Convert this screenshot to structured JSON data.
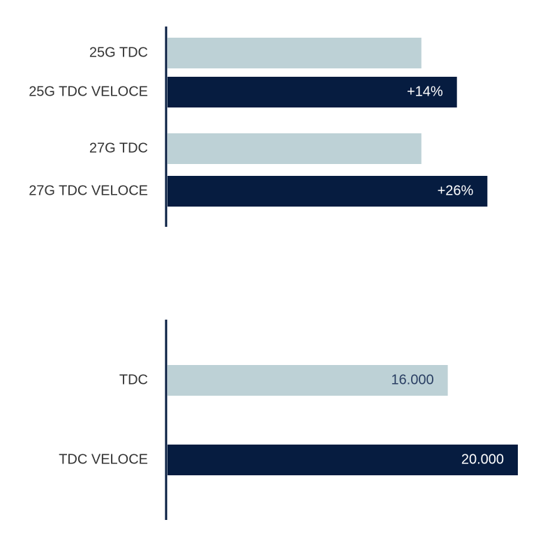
{
  "chart_data": [
    {
      "type": "barh",
      "categories": [
        "25G TDC",
        "25G TDC VELOCE",
        "27G TDC",
        "27G TDC VELOCE"
      ],
      "values": [
        100,
        114,
        100,
        126
      ],
      "value_labels": [
        null,
        "+14%",
        null,
        "+26%"
      ],
      "colors": [
        "#bdd1d6",
        "#061c40",
        "#bdd1d6",
        "#061c40"
      ],
      "xlim": [
        0,
        138
      ]
    },
    {
      "type": "barh",
      "categories": [
        "TDC",
        "TDC VELOCE"
      ],
      "values": [
        16000,
        20000
      ],
      "value_labels": [
        "16.000",
        "20.000"
      ],
      "colors": [
        "#bdd1d6",
        "#061c40"
      ],
      "xlim": [
        0,
        20000
      ]
    }
  ]
}
